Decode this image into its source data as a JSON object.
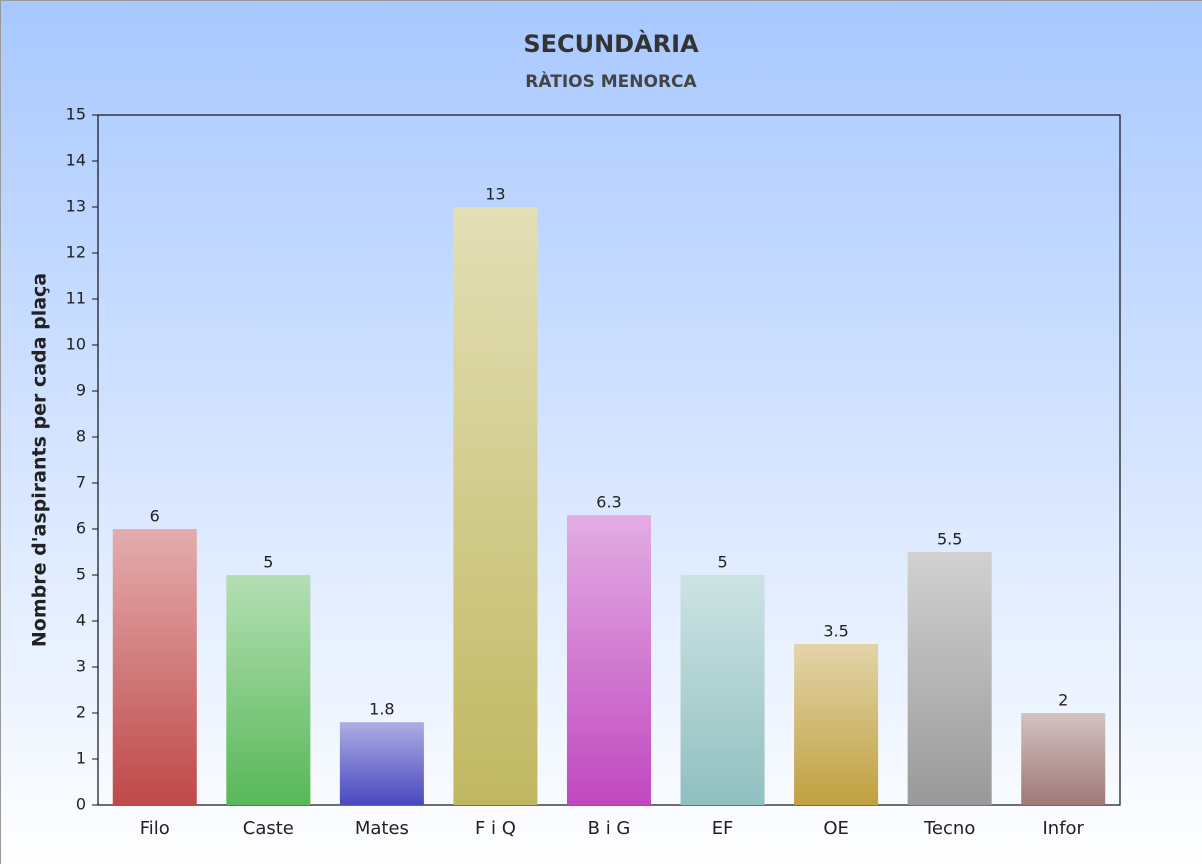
{
  "chart_data": {
    "type": "bar",
    "title": "SECUNDÀRIA",
    "subtitle": "RÀTIOS MENORCA",
    "y_label": "Nombre d'aspirants per cada plaça",
    "categories": [
      "Filo",
      "Caste",
      "Mates",
      "F i Q",
      "B i G",
      "EF",
      "OE",
      "Tecno",
      "Infor"
    ],
    "values": [
      6,
      5,
      1.8,
      13,
      6.3,
      5,
      3.5,
      5.5,
      2
    ],
    "colors": [
      "#c04848",
      "#58b858",
      "#4848c0",
      "#c0b860",
      "#c048c0",
      "#90c0c0",
      "#c0a040",
      "#999999",
      "#a07878"
    ],
    "ylim": [
      0,
      15
    ],
    "yticks": [
      0,
      1,
      2,
      3,
      4,
      5,
      6,
      7,
      8,
      9,
      10,
      11,
      12,
      13,
      14,
      15
    ],
    "grid": false
  }
}
